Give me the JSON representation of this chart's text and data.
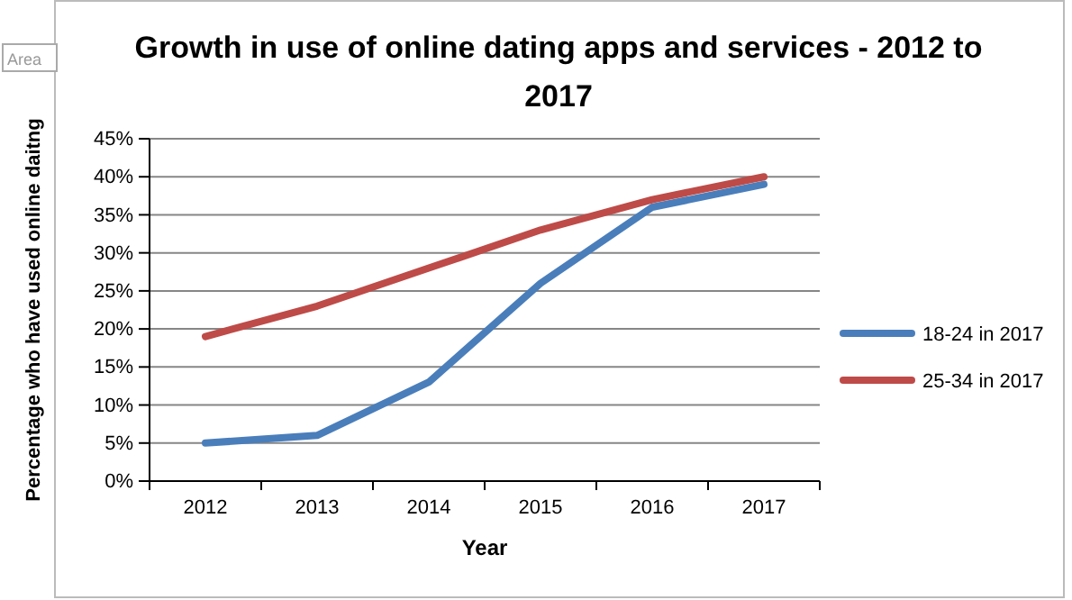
{
  "chart_data": {
    "type": "line",
    "title": "Growth in use of online dating apps and services - 2012 to 2017",
    "xlabel": "Year",
    "ylabel": "Percentage who have used online daitng",
    "categories": [
      "2012",
      "2013",
      "2014",
      "2015",
      "2016",
      "2017"
    ],
    "series": [
      {
        "name": "18-24 in 2017",
        "color": "#4a7ebb",
        "values": [
          5,
          6,
          13,
          26,
          36,
          39
        ]
      },
      {
        "name": "25-34 in 2017",
        "color": "#be4b48",
        "values": [
          19,
          23,
          28,
          33,
          37,
          40
        ]
      }
    ],
    "ylim": [
      0,
      45
    ],
    "yticks": [
      {
        "value": 0,
        "label": "0%"
      },
      {
        "value": 5,
        "label": "5%"
      },
      {
        "value": 10,
        "label": "10%"
      },
      {
        "value": 15,
        "label": "15%"
      },
      {
        "value": 20,
        "label": "20%"
      },
      {
        "value": 25,
        "label": "25%"
      },
      {
        "value": 30,
        "label": "30%"
      },
      {
        "value": 35,
        "label": "35%"
      },
      {
        "value": 40,
        "label": "40%"
      },
      {
        "value": 45,
        "label": "45%"
      }
    ],
    "grid": "y",
    "legend": "right",
    "marker": "none",
    "line_style": "solid",
    "annotations": [
      "Area"
    ]
  }
}
